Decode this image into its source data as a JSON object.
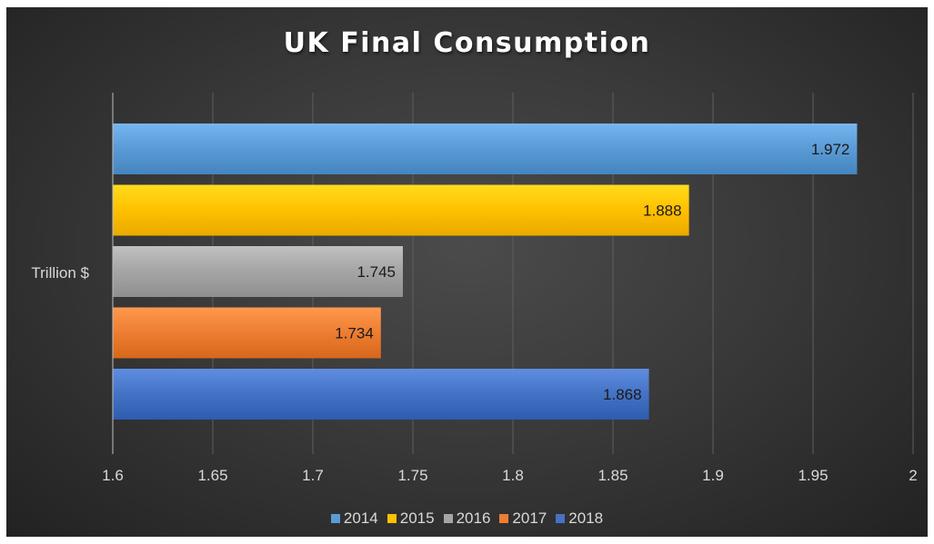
{
  "chart_data": {
    "type": "bar",
    "orientation": "horizontal",
    "title": "UK Final Consumption",
    "category": "Trillion $",
    "series": [
      {
        "name": "2014",
        "value": 1.972,
        "label": "1.972",
        "color": "#5b9bd5"
      },
      {
        "name": "2015",
        "value": 1.888,
        "label": "1.888",
        "color": "#ffc000"
      },
      {
        "name": "2016",
        "value": 1.745,
        "label": "1.745",
        "color": "#a5a5a5"
      },
      {
        "name": "2017",
        "value": 1.734,
        "label": "1.734",
        "color": "#ed7d31"
      },
      {
        "name": "2018",
        "value": 1.868,
        "label": "1.868",
        "color": "#4472c4"
      }
    ],
    "xlim": [
      1.6,
      2
    ],
    "xticks": [
      "1.6",
      "1.65",
      "1.7",
      "1.75",
      "1.8",
      "1.85",
      "1.9",
      "1.95",
      "2"
    ],
    "grid": true,
    "legend_position": "bottom"
  }
}
